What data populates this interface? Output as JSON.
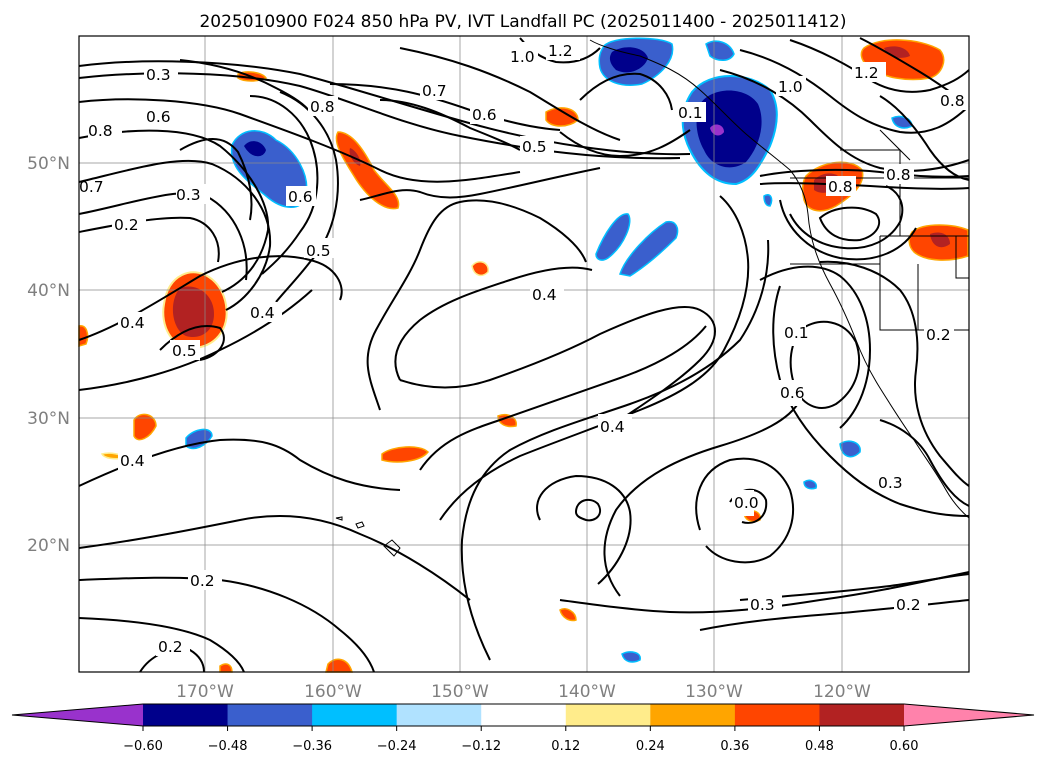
{
  "title": "2025010900 F024 850 hPa PV, IVT Landfall PC (2025011400 - 2025011412)",
  "axes": {
    "lat_labels": [
      "50°N",
      "40°N",
      "30°N",
      "20°N"
    ],
    "lon_labels": [
      "170°W",
      "160°W",
      "150°W",
      "140°W",
      "130°W",
      "120°W"
    ],
    "grid": true
  },
  "colorbar": {
    "orientation": "horizontal",
    "extend": "both",
    "bins": [
      {
        "color": "#9932cc"
      },
      {
        "color": "#00008b"
      },
      {
        "color": "#3a5fcd"
      },
      {
        "color": "#00bfff"
      },
      {
        "color": "#b0e2ff"
      },
      {
        "color": "#ffffff"
      },
      {
        "color": "#ffec8b"
      },
      {
        "color": "#ffa500"
      },
      {
        "color": "#ff4500"
      },
      {
        "color": "#b22222"
      },
      {
        "color": "#ff82ab"
      }
    ],
    "ticks": [
      "−0.60",
      "−0.48",
      "−0.36",
      "−0.24",
      "−0.12",
      "0.12",
      "0.24",
      "0.36",
      "0.48",
      "0.60"
    ]
  },
  "contour_labels": [
    "0.3",
    "0.6",
    "0.8",
    "0.7",
    "0.3",
    "0.2",
    "0.6",
    "0.5",
    "0.4",
    "0.5",
    "0.4",
    "0.4",
    "0.2",
    "0.2",
    "1.0",
    "1.2",
    "0.7",
    "0.6",
    "0.5",
    "0.8",
    "0.4",
    "0.4",
    "0.3",
    "0.2",
    "0.1",
    "0.6",
    "0.8",
    "1.0",
    "1.2",
    "0.8",
    "0.8",
    "0.2",
    "0.3",
    "0.1",
    "0.0"
  ]
}
